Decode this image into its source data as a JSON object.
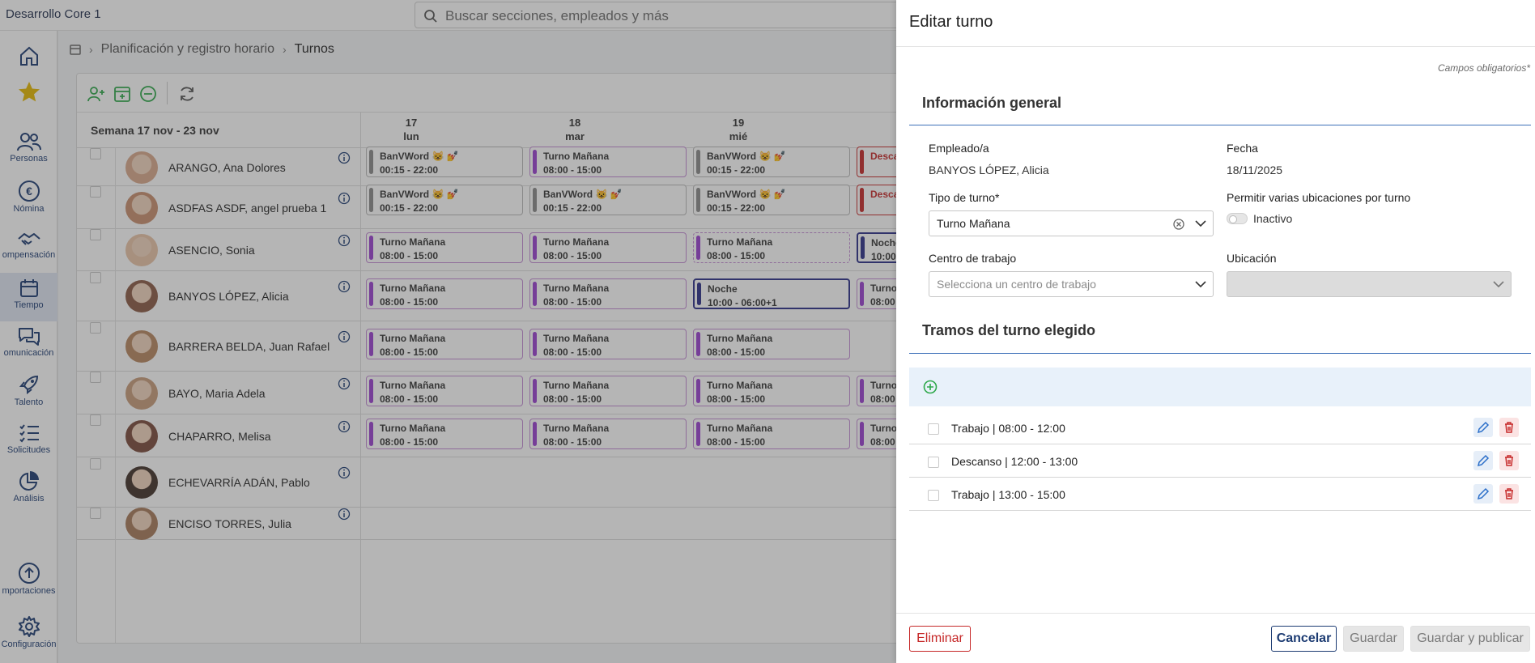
{
  "app": {
    "title": "Desarrollo Core 1",
    "search_placeholder": "Buscar secciones, empleados y más"
  },
  "sidebar": {
    "items": [
      {
        "label": "",
        "icon": "home-icon"
      },
      {
        "label": "",
        "icon": "star-icon"
      },
      {
        "label": "Personas",
        "icon": "people-icon"
      },
      {
        "label": "Nómina",
        "icon": "euro-icon"
      },
      {
        "label": "ompensación",
        "icon": "handshake-icon"
      },
      {
        "label": "Tiempo",
        "icon": "calendar-icon"
      },
      {
        "label": "omunicación",
        "icon": "chat-icon"
      },
      {
        "label": "Talento",
        "icon": "rocket-icon"
      },
      {
        "label": "Solicitudes",
        "icon": "list-icon"
      },
      {
        "label": "Análisis",
        "icon": "pie-chart-icon"
      },
      {
        "label": "mportaciones",
        "icon": "upload-icon"
      },
      {
        "label": "Configuración",
        "icon": "gear-icon"
      }
    ]
  },
  "breadcrumb": {
    "level1": "Planificación y registro horario",
    "current": "Turnos"
  },
  "schedule": {
    "week_label": "Semana 17 nov - 23 nov",
    "days": [
      {
        "num": "17",
        "name": "lun"
      },
      {
        "num": "18",
        "name": "mar"
      },
      {
        "num": "19",
        "name": "mié"
      }
    ],
    "employees": [
      {
        "name": "ARANGO, Ana Dolores",
        "shifts": [
          {
            "title": "BanVWord 😺 💅",
            "time": "00:15 - 22:00",
            "style": "grey"
          },
          {
            "title": "Turno Mañana",
            "time": "08:00 - 15:00",
            "style": "purple"
          },
          {
            "title": "BanVWord 😺 💅",
            "time": "00:15 - 22:00",
            "style": "grey"
          },
          {
            "title": "Desca",
            "time": "",
            "style": "red"
          }
        ]
      },
      {
        "name": "ASDFAS ASDF, angel prueba 1",
        "shifts": [
          {
            "title": "BanVWord 😺 💅",
            "time": "00:15 - 22:00",
            "style": "grey"
          },
          {
            "title": "BanVWord 😺 💅",
            "time": "00:15 - 22:00",
            "style": "grey"
          },
          {
            "title": "BanVWord 😺 💅",
            "time": "00:15 - 22:00",
            "style": "grey"
          },
          {
            "title": "Desca",
            "time": "",
            "style": "red"
          }
        ]
      },
      {
        "name": "ASENCIO, Sonia",
        "shifts": [
          {
            "title": "Turno Mañana",
            "time": "08:00 - 15:00",
            "style": "purple"
          },
          {
            "title": "Turno Mañana",
            "time": "08:00 - 15:00",
            "style": "purple"
          },
          {
            "title": "Turno Mañana",
            "time": "08:00 - 15:00",
            "style": "dashed"
          },
          {
            "title": "Noche",
            "time": "10:00",
            "style": "navy"
          }
        ]
      },
      {
        "name": "BANYOS LÓPEZ, Alicia",
        "shifts": [
          {
            "title": "Turno Mañana",
            "time": "08:00 - 15:00",
            "style": "purple"
          },
          {
            "title": "Turno Mañana",
            "time": "08:00 - 15:00",
            "style": "purple"
          },
          {
            "title": "Noche",
            "time": "10:00 - 06:00+1",
            "style": "navy"
          },
          {
            "title": "Turno",
            "time": "08:00",
            "style": "purple"
          }
        ]
      },
      {
        "name": "BARRERA BELDA, Juan Rafael",
        "shifts": [
          {
            "title": "Turno Mañana",
            "time": "08:00 - 15:00",
            "style": "purple"
          },
          {
            "title": "Turno Mañana",
            "time": "08:00 - 15:00",
            "style": "purple"
          },
          {
            "title": "Turno Mañana",
            "time": "08:00 - 15:00",
            "style": "purple"
          }
        ]
      },
      {
        "name": "BAYO, Maria Adela",
        "shifts": [
          {
            "title": "Turno Mañana",
            "time": "08:00 - 15:00",
            "style": "purple"
          },
          {
            "title": "Turno Mañana",
            "time": "08:00 - 15:00",
            "style": "purple"
          },
          {
            "title": "Turno Mañana",
            "time": "08:00 - 15:00",
            "style": "purple"
          },
          {
            "title": "Turno",
            "time": "08:00",
            "style": "purple"
          }
        ]
      },
      {
        "name": "CHAPARRO, Melisa",
        "shifts": [
          {
            "title": "Turno Mañana",
            "time": "08:00 - 15:00",
            "style": "purple"
          },
          {
            "title": "Turno Mañana",
            "time": "08:00 - 15:00",
            "style": "purple"
          },
          {
            "title": "Turno Mañana",
            "time": "08:00 - 15:00",
            "style": "purple"
          },
          {
            "title": "Turno",
            "time": "08:00",
            "style": "purple"
          }
        ]
      },
      {
        "name": "ECHEVARRÍA ADÁN, Pablo",
        "shifts": []
      },
      {
        "name": "ENCISO TORRES, Julia",
        "shifts": []
      }
    ]
  },
  "drawer": {
    "title": "Editar turno",
    "required_note": "Campos obligatorios*",
    "general_section": "Información general",
    "employee_label": "Empleado/a",
    "employee_value": "BANYOS LÓPEZ, Alicia",
    "date_label": "Fecha",
    "date_value": "18/11/2025",
    "shift_type_label": "Tipo de turno*",
    "shift_type_value": "Turno Mañana",
    "multi_location_label": "Permitir varias ubicaciones por turno",
    "multi_location_state": "Inactivo",
    "workcenter_label": "Centro de trabajo",
    "workcenter_placeholder": "Selecciona un centro de trabajo",
    "location_label": "Ubicación",
    "tramos_section": "Tramos del turno elegido",
    "tramos": [
      {
        "label": "Trabajo | 08:00 - 12:00"
      },
      {
        "label": "Descanso | 12:00 - 13:00"
      },
      {
        "label": "Trabajo | 13:00 - 15:00"
      }
    ],
    "buttons": {
      "delete": "Eliminar",
      "cancel": "Cancelar",
      "save": "Guardar",
      "save_publish": "Guardar y publicar"
    }
  },
  "colors": {
    "accent": "#1c3b72",
    "shift_purple": "#9a3fd0",
    "danger": "#c62828",
    "positive": "#2ea84a"
  }
}
